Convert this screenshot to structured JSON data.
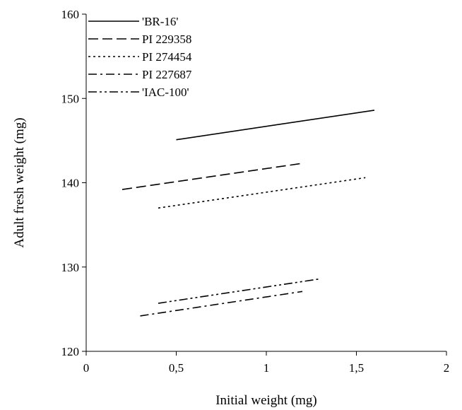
{
  "chart_data": {
    "type": "line",
    "title": "",
    "xlabel": "Initial weight (mg)",
    "ylabel": "Adult fresh weight (mg)",
    "xlim": [
      0,
      2
    ],
    "ylim": [
      120,
      160
    ],
    "x_ticks": [
      0,
      0.5,
      1,
      1.5,
      2
    ],
    "x_tick_labels": [
      "0",
      "0,5",
      "1",
      "1,5",
      "2"
    ],
    "y_ticks": [
      120,
      130,
      140,
      150,
      160
    ],
    "y_tick_labels": [
      "120",
      "130",
      "140",
      "150",
      "160"
    ],
    "grid": false,
    "legend_position": "top-left",
    "series": [
      {
        "name": "'BR-16'",
        "dash": "solid",
        "x": [
          0.5,
          1.6
        ],
        "y": [
          145.1,
          148.6
        ]
      },
      {
        "name": "PI 229358",
        "dash": "dash",
        "x": [
          0.2,
          1.2
        ],
        "y": [
          139.2,
          142.3
        ]
      },
      {
        "name": "PI 274454",
        "dash": "dot",
        "x": [
          0.4,
          1.55
        ],
        "y": [
          137.0,
          140.6
        ]
      },
      {
        "name": "PI 227687",
        "dash": "dashdot",
        "x": [
          0.3,
          1.2
        ],
        "y": [
          124.2,
          127.1
        ]
      },
      {
        "name": "'IAC-100'",
        "dash": "dashdotdot",
        "x": [
          0.4,
          1.3
        ],
        "y": [
          125.7,
          128.6
        ]
      }
    ]
  }
}
